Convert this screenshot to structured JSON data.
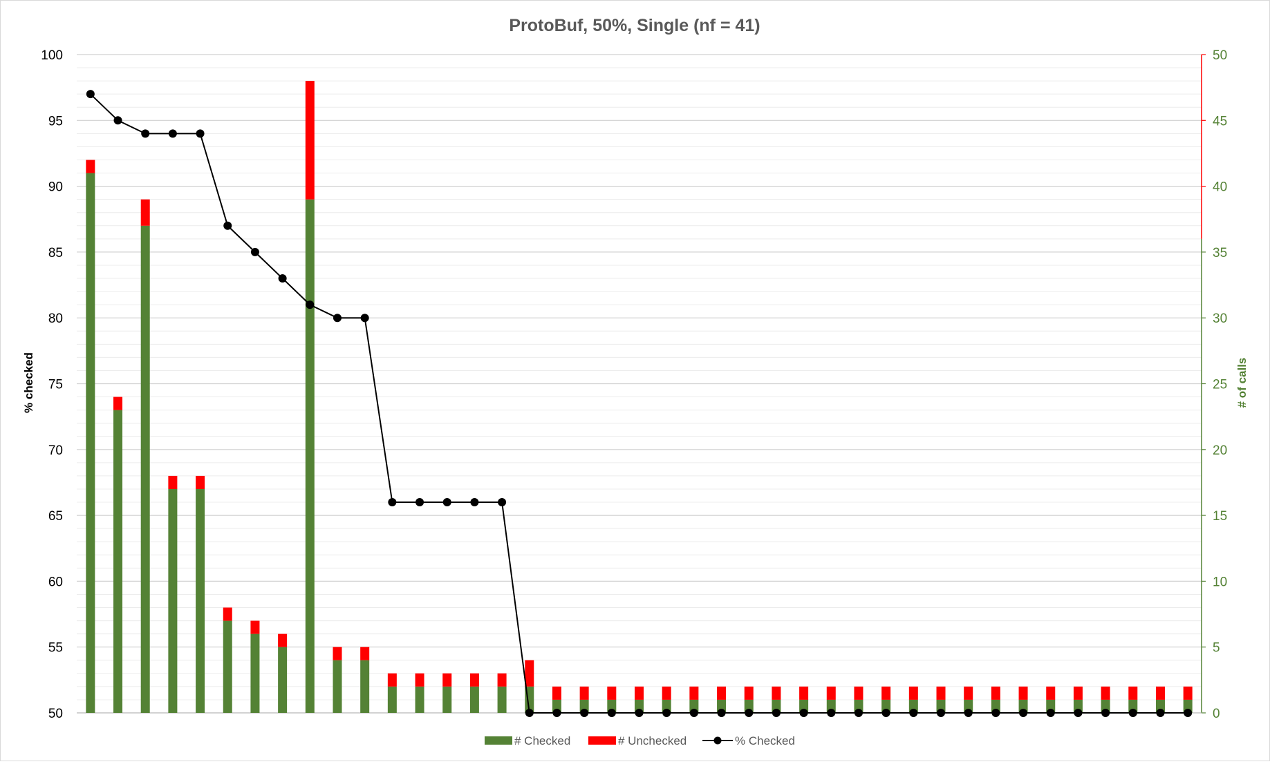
{
  "chart_data": {
    "type": "bar",
    "title": "ProtoBuf, 50%, Single (nf = 41)",
    "y_left": {
      "label": "% checked",
      "range": [
        50,
        100
      ],
      "ticks": [
        "100",
        "95",
        "90",
        "85",
        "80",
        "75",
        "70",
        "65",
        "60",
        "55",
        "50"
      ]
    },
    "y_right": {
      "label": "# of calls",
      "range": [
        0,
        50
      ],
      "ticks": [
        "50",
        "45",
        "40",
        "35",
        "30",
        "25",
        "20",
        "15",
        "10",
        "5",
        "0"
      ]
    },
    "categories_count": 41,
    "stacked": true,
    "series": [
      {
        "name": "# Checked",
        "type": "bar",
        "axis": "right",
        "color": "#548235",
        "values": [
          41,
          23,
          37,
          17,
          17,
          7,
          6,
          5,
          39,
          4,
          4,
          2,
          2,
          2,
          2,
          2,
          2,
          1,
          1,
          1,
          1,
          1,
          1,
          1,
          1,
          1,
          1,
          1,
          1,
          1,
          1,
          1,
          1,
          1,
          1,
          1,
          1,
          1,
          1,
          1,
          1
        ]
      },
      {
        "name": "# Unchecked",
        "type": "bar",
        "axis": "right",
        "color": "#ff0000",
        "values": [
          1,
          1,
          2,
          1,
          1,
          1,
          1,
          1,
          9,
          1,
          1,
          1,
          1,
          1,
          1,
          1,
          2,
          1,
          1,
          1,
          1,
          1,
          1,
          1,
          1,
          1,
          1,
          1,
          1,
          1,
          1,
          1,
          1,
          1,
          1,
          1,
          1,
          1,
          1,
          1,
          1
        ]
      },
      {
        "name": "% Checked",
        "type": "line",
        "axis": "left",
        "color": "#000000",
        "values": [
          97,
          95,
          94,
          94,
          94,
          87,
          85,
          83,
          81,
          80,
          80,
          66,
          66,
          66,
          66,
          66,
          50,
          50,
          50,
          50,
          50,
          50,
          50,
          50,
          50,
          50,
          50,
          50,
          50,
          50,
          50,
          50,
          50,
          50,
          50,
          50,
          50,
          50,
          50,
          50,
          50
        ]
      }
    ],
    "legend_position": "bottom",
    "grid": true,
    "minor_grid": true
  }
}
